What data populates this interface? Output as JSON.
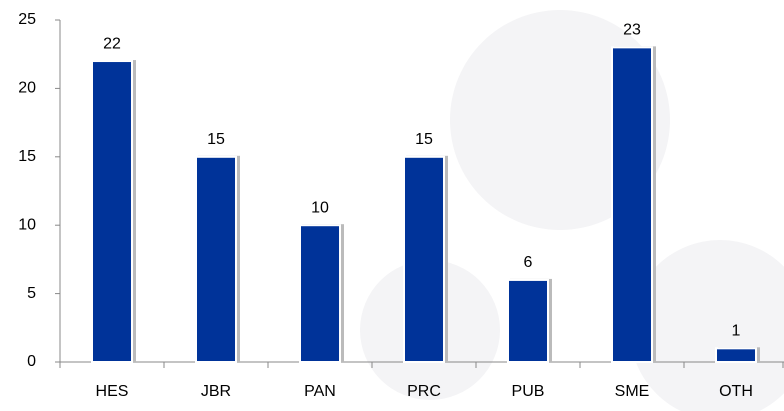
{
  "chart_data": {
    "type": "bar",
    "categories": [
      "HES",
      "JBR",
      "PAN",
      "PRC",
      "PUB",
      "SME",
      "OTH"
    ],
    "values": [
      22,
      15,
      10,
      15,
      6,
      23,
      1
    ],
    "color": "#003399",
    "ylim": [
      0,
      25
    ],
    "yticks": [
      0,
      5,
      10,
      15,
      20,
      25
    ],
    "grid": false
  }
}
